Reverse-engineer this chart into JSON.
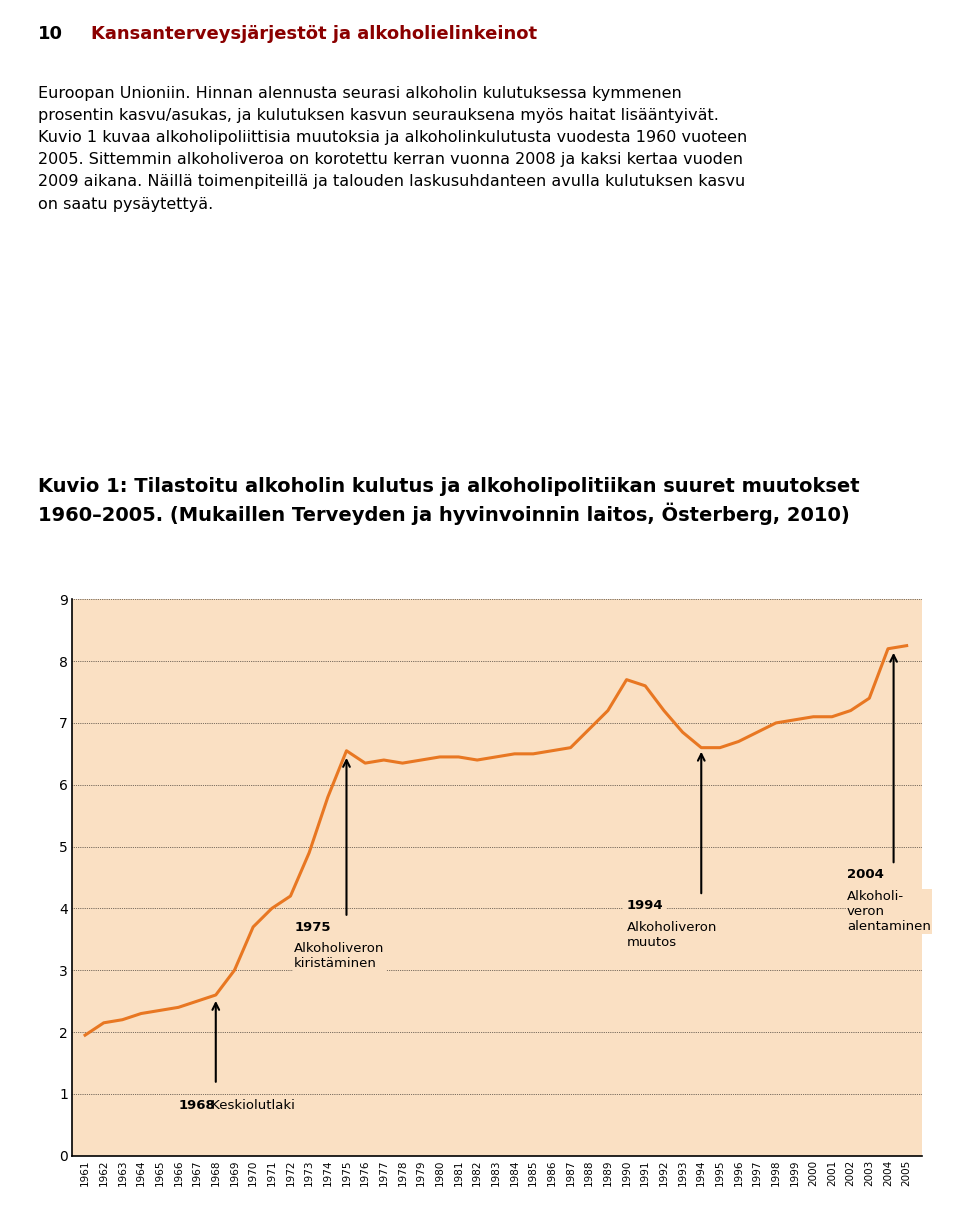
{
  "page_number": "10",
  "page_title": "Kansanterveysjärjestöt ja alkoholielinkeinot",
  "body_text_lines": [
    "Euroopan Unioniin. Hinnan alennusta seurasi alkoholin kulutuksessa kymmenen",
    "prosentin kasvu/asukas, ja kulutuksen kasvun seurauksena myös haitat lisääntyivät.",
    "Kuvio 1 kuvaa alkoholipoliittisia muutoksia ja alkoholinkulutusta vuodesta 1960 vuoteen",
    "2005. Sittemmin alkoholiveroa on korotettu kerran vuonna 2008 ja kaksi kertaa vuoden",
    "2009 aikana. Näillä toimenpiteillä ja talouden laskusuhdanteen avulla kulutuksen kasvu",
    "on saatu pysäytettyä."
  ],
  "figure_title_line1": "Kuvio 1: Tilastoitu alkoholin kulutus ja alkoholipolitiikan suuret muutokset",
  "figure_title_line2": "1960–2005. (Mukaillen Terveyden ja hyvinvoinnin laitos, Österberg, 2010)",
  "years": [
    1961,
    1962,
    1963,
    1964,
    1965,
    1966,
    1967,
    1968,
    1969,
    1970,
    1971,
    1972,
    1973,
    1974,
    1975,
    1976,
    1977,
    1978,
    1979,
    1980,
    1981,
    1982,
    1983,
    1984,
    1985,
    1986,
    1987,
    1988,
    1989,
    1990,
    1991,
    1992,
    1993,
    1994,
    1995,
    1996,
    1997,
    1998,
    1999,
    2000,
    2001,
    2002,
    2003,
    2004,
    2005
  ],
  "values": [
    1.95,
    2.15,
    2.2,
    2.3,
    2.35,
    2.4,
    2.5,
    2.6,
    3.0,
    3.7,
    4.0,
    4.2,
    4.9,
    5.8,
    6.55,
    6.35,
    6.4,
    6.35,
    6.4,
    6.45,
    6.45,
    6.4,
    6.45,
    6.5,
    6.5,
    6.55,
    6.6,
    6.9,
    7.2,
    7.7,
    7.6,
    7.2,
    6.85,
    6.6,
    6.6,
    6.7,
    6.85,
    7.0,
    7.05,
    7.1,
    7.1,
    7.2,
    7.4,
    8.2,
    8.25
  ],
  "line_color": "#E87722",
  "plot_bg_color": "#FAE0C3",
  "page_bg_color": "#FFFFFF",
  "grid_color": "#000000",
  "ylim": [
    0,
    9
  ],
  "yticks": [
    0,
    1,
    2,
    3,
    4,
    5,
    6,
    7,
    8,
    9
  ],
  "page_num_color": "#000000",
  "page_title_color": "#8B0000",
  "figure_title_color": "#000000",
  "body_text_color": "#000000",
  "ann_1968_bold": "1968",
  "ann_1968_normal": " Keskiolutlaki",
  "ann_1975_bold": "1975",
  "ann_1975_normal": "Alkoholiveron\nkiristäminen",
  "ann_1994_bold": "1994",
  "ann_1994_normal": "Alkoholiveron\nmuutos",
  "ann_2004_bold": "2004",
  "ann_2004_normal": "Alkoholi-\nveron\nalentaminen"
}
